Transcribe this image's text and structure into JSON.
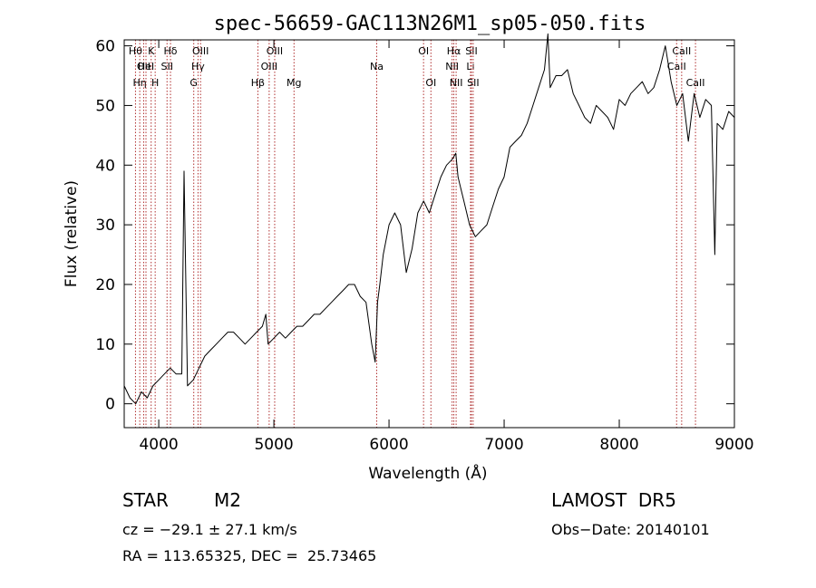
{
  "chart_data": {
    "type": "line",
    "title": "spec-56659-GAC113N26M1_sp05-050.fits",
    "xlabel": "Wavelength (Å)",
    "ylabel": "Flux (relative)",
    "xlim": [
      3700,
      9000
    ],
    "ylim": [
      -4,
      61
    ],
    "xticks": [
      4000,
      5000,
      6000,
      7000,
      8000,
      9000
    ],
    "yticks": [
      0,
      10,
      20,
      30,
      40,
      50,
      60
    ],
    "series": [
      {
        "x": [
          3700,
          3750,
          3800,
          3850,
          3900,
          3950,
          4000,
          4050,
          4100,
          4150,
          4200,
          4220,
          4250,
          4300,
          4350,
          4400,
          4450,
          4500,
          4550,
          4600,
          4650,
          4700,
          4750,
          4800,
          4850,
          4900,
          4930,
          4950,
          5000,
          5050,
          5100,
          5150,
          5200,
          5250,
          5300,
          5350,
          5400,
          5450,
          5500,
          5550,
          5600,
          5650,
          5700,
          5750,
          5800,
          5850,
          5880,
          5900,
          5920,
          5950,
          6000,
          6050,
          6100,
          6150,
          6200,
          6250,
          6300,
          6350,
          6400,
          6450,
          6500,
          6550,
          6580,
          6600,
          6650,
          6700,
          6750,
          6800,
          6850,
          6900,
          6950,
          7000,
          7050,
          7100,
          7150,
          7200,
          7250,
          7300,
          7350,
          7380,
          7400,
          7450,
          7500,
          7550,
          7600,
          7650,
          7700,
          7750,
          7800,
          7850,
          7900,
          7950,
          8000,
          8050,
          8100,
          8150,
          8200,
          8250,
          8300,
          8350,
          8400,
          8450,
          8500,
          8550,
          8600,
          8650,
          8700,
          8750,
          8800,
          8830,
          8850,
          8900,
          8950,
          9000
        ],
        "y": [
          3,
          1,
          0,
          2,
          1,
          3,
          4,
          5,
          6,
          5,
          5,
          39,
          3,
          4,
          6,
          8,
          9,
          10,
          11,
          12,
          12,
          11,
          10,
          11,
          12,
          13,
          15,
          10,
          11,
          12,
          11,
          12,
          13,
          13,
          14,
          15,
          15,
          16,
          17,
          18,
          19,
          20,
          20,
          18,
          17,
          10,
          7,
          17,
          20,
          25,
          30,
          32,
          30,
          22,
          26,
          32,
          34,
          32,
          35,
          38,
          40,
          41,
          42,
          38,
          34,
          30,
          28,
          29,
          30,
          33,
          36,
          38,
          43,
          44,
          45,
          47,
          50,
          53,
          56,
          62,
          53,
          55,
          55,
          56,
          52,
          50,
          48,
          47,
          50,
          49,
          48,
          46,
          51,
          50,
          52,
          53,
          54,
          52,
          53,
          56,
          60,
          54,
          50,
          52,
          44,
          52,
          48,
          51,
          50,
          25,
          47,
          46,
          49,
          48
        ]
      }
    ],
    "line_markers": [
      {
        "wl": 3798,
        "label": "Hθ",
        "row": 0
      },
      {
        "wl": 3835,
        "label": "Hη",
        "row": 2
      },
      {
        "wl": 3869,
        "label": "OII",
        "row": 1
      },
      {
        "wl": 3889,
        "label": "HeI",
        "row": 1
      },
      {
        "wl": 3934,
        "label": "K",
        "row": 0
      },
      {
        "wl": 3969,
        "label": "H",
        "row": 2
      },
      {
        "wl": 4072,
        "label": "SII",
        "row": 1
      },
      {
        "wl": 4102,
        "label": "Hδ",
        "row": 0
      },
      {
        "wl": 4304,
        "label": "G",
        "row": 2
      },
      {
        "wl": 4341,
        "label": "Hγ",
        "row": 1
      },
      {
        "wl": 4363,
        "label": "OIII",
        "row": 0
      },
      {
        "wl": 4861,
        "label": "Hβ",
        "row": 2
      },
      {
        "wl": 4959,
        "label": "OIII",
        "row": 1
      },
      {
        "wl": 5007,
        "label": "OIII",
        "row": 0
      },
      {
        "wl": 5175,
        "label": "Mg",
        "row": 2
      },
      {
        "wl": 5893,
        "label": "Na",
        "row": 1
      },
      {
        "wl": 6300,
        "label": "OI",
        "row": 0
      },
      {
        "wl": 6364,
        "label": "OI",
        "row": 2
      },
      {
        "wl": 6548,
        "label": "NII",
        "row": 1
      },
      {
        "wl": 6563,
        "label": "Hα",
        "row": 0
      },
      {
        "wl": 6583,
        "label": "NII",
        "row": 2
      },
      {
        "wl": 6708,
        "label": "Li",
        "row": 1
      },
      {
        "wl": 6716,
        "label": "SII",
        "row": 0
      },
      {
        "wl": 6731,
        "label": "SII",
        "row": 2
      },
      {
        "wl": 8498,
        "label": "CaII",
        "row": 1
      },
      {
        "wl": 8542,
        "label": "CaII",
        "row": 0
      },
      {
        "wl": 8662,
        "label": "CaII",
        "row": 2
      }
    ]
  },
  "info": {
    "class": "STAR",
    "subclass": "M2",
    "survey": "LAMOST  DR5",
    "cz": "cz = −29.1 ± 27.1 km/s",
    "obs_date": "Obs−Date: 20140101",
    "coords": "RA = 113.65325, DEC =  25.73465"
  }
}
